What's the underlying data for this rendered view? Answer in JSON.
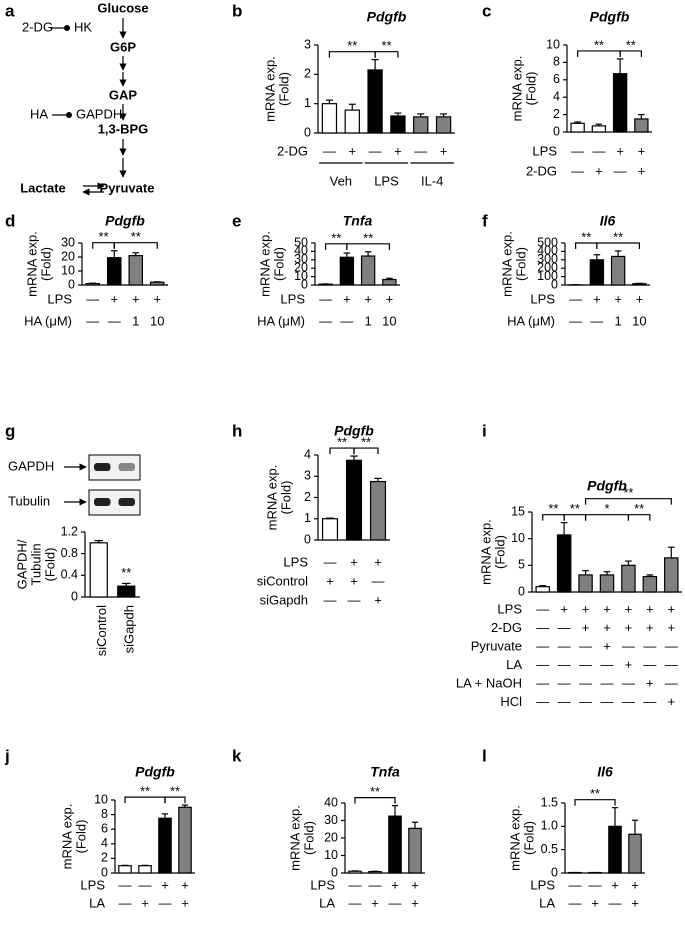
{
  "diagram": {
    "panel": "a",
    "nodes": [
      "Glucose",
      "G6P",
      "GAP",
      "1,3-BPG",
      "Lactate",
      "Pyruvate"
    ],
    "inhibitors": [
      {
        "drug": "2-DG",
        "target": "HK"
      },
      {
        "drug": "HA",
        "target": "GAPDH"
      }
    ]
  },
  "chart_data": [
    {
      "type": "bar",
      "panel": "b",
      "title": "Pdgfb",
      "ylabel": [
        "mRNA exp.",
        "(Fold)"
      ],
      "values": [
        1.0,
        0.78,
        2.15,
        0.58,
        0.55,
        0.55
      ],
      "errors": [
        0.12,
        0.2,
        0.35,
        0.1,
        0.1,
        0.1
      ],
      "colors": [
        "#ffffff",
        "#ffffff",
        "#000000",
        "#000000",
        "#808080",
        "#808080"
      ],
      "ylim": [
        0,
        3
      ],
      "yticks": [
        0,
        1,
        2,
        3
      ],
      "rows": [
        {
          "label": "2-DG",
          "marks": [
            "—",
            "+",
            "—",
            "+",
            "—",
            "+"
          ]
        }
      ],
      "groups": [
        "Veh",
        "LPS",
        "IL-4"
      ],
      "annotations": [
        {
          "text": "**",
          "between": [
            0,
            2
          ]
        },
        {
          "text": "**",
          "between": [
            2,
            3
          ]
        }
      ]
    },
    {
      "type": "bar",
      "panel": "c",
      "title": "Pdgfb",
      "ylabel": [
        "mRNA exp.",
        "(Fold)"
      ],
      "values": [
        1.0,
        0.7,
        6.7,
        1.5
      ],
      "errors": [
        0.15,
        0.2,
        1.7,
        0.5
      ],
      "colors": [
        "#ffffff",
        "#ffffff",
        "#000000",
        "#808080"
      ],
      "ylim": [
        0,
        10
      ],
      "yticks": [
        0,
        2,
        4,
        6,
        8,
        10
      ],
      "rows": [
        {
          "label": "LPS",
          "marks": [
            "—",
            "—",
            "+",
            "+"
          ]
        },
        {
          "label": "2-DG",
          "marks": [
            "—",
            "+",
            "—",
            "+"
          ]
        }
      ],
      "annotations": [
        {
          "text": "**",
          "between": [
            0,
            2
          ]
        },
        {
          "text": "**",
          "between": [
            2,
            3
          ]
        }
      ]
    },
    {
      "type": "bar",
      "panel": "d",
      "title": "Pdgfb",
      "ylabel": [
        "mRNA exp.",
        "(Fold)"
      ],
      "values": [
        1,
        19.5,
        21,
        2
      ],
      "errors": [
        0.3,
        5,
        2,
        0.3
      ],
      "colors": [
        "#ffffff",
        "#000000",
        "#808080",
        "#808080"
      ],
      "ylim": [
        0,
        30
      ],
      "yticks": [
        0,
        10,
        20,
        30
      ],
      "rows": [
        {
          "label": "LPS",
          "marks": [
            "—",
            "+",
            "+",
            "+"
          ]
        },
        {
          "label": "HA (μM)",
          "marks": [
            "—",
            "—",
            "1",
            "10"
          ]
        }
      ],
      "annotations": [
        {
          "text": "**",
          "between": [
            0,
            1
          ]
        },
        {
          "text": "**",
          "between": [
            1,
            3
          ]
        }
      ]
    },
    {
      "type": "bar",
      "panel": "e",
      "title": "Tnfa",
      "ylabel": [
        "mRNA exp.",
        "(Fold)"
      ],
      "values": [
        1,
        33,
        34.5,
        6.5
      ],
      "errors": [
        0.3,
        5,
        5,
        1.5
      ],
      "colors": [
        "#ffffff",
        "#000000",
        "#808080",
        "#808080"
      ],
      "ylim": [
        0,
        50
      ],
      "yticks": [
        0,
        10,
        20,
        30,
        40,
        50
      ],
      "rows": [
        {
          "label": "LPS",
          "marks": [
            "—",
            "+",
            "+",
            "+"
          ]
        },
        {
          "label": "HA (μM)",
          "marks": [
            "—",
            "—",
            "1",
            "10"
          ]
        }
      ],
      "annotations": [
        {
          "text": "**",
          "between": [
            0,
            1
          ]
        },
        {
          "text": "**",
          "between": [
            1,
            3
          ]
        }
      ]
    },
    {
      "type": "bar",
      "panel": "f",
      "title": "Il6",
      "ylabel": [
        "mRNA exp.",
        "(Fold)"
      ],
      "values": [
        2,
        300,
        340,
        15
      ],
      "errors": [
        1,
        60,
        65,
        5
      ],
      "colors": [
        "#ffffff",
        "#000000",
        "#808080",
        "#808080"
      ],
      "ylim": [
        0,
        500
      ],
      "yticks": [
        0,
        100,
        200,
        300,
        400,
        500
      ],
      "rows": [
        {
          "label": "LPS",
          "marks": [
            "—",
            "+",
            "+",
            "+"
          ]
        },
        {
          "label": "HA (μM)",
          "marks": [
            "—",
            "—",
            "1",
            "10"
          ]
        }
      ],
      "annotations": [
        {
          "text": "**",
          "between": [
            0,
            1
          ]
        },
        {
          "text": "**",
          "between": [
            1,
            3
          ]
        }
      ]
    },
    {
      "type": "bar",
      "panel": "g",
      "blots": [
        "GAPDH",
        "Tubulin"
      ],
      "ylabel": [
        "GAPDH/",
        "Tubulin",
        "(Fold)"
      ],
      "categories": [
        "siControl",
        "siGapdh"
      ],
      "values": [
        1.0,
        0.2
      ],
      "errors": [
        0.04,
        0.05
      ],
      "colors": [
        "#ffffff",
        "#000000"
      ],
      "ylim": [
        0,
        1.2
      ],
      "yticks": [
        0,
        0.4,
        0.8,
        1.2
      ],
      "annotations": [
        {
          "text": "**",
          "between": [
            1
          ]
        }
      ]
    },
    {
      "type": "bar",
      "panel": "h",
      "title": "Pdgfb",
      "ylabel": [
        "mRNA exp.",
        "(Fold)"
      ],
      "values": [
        1.0,
        3.75,
        2.75
      ],
      "errors": [
        0.03,
        0.2,
        0.15
      ],
      "colors": [
        "#ffffff",
        "#000000",
        "#808080"
      ],
      "ylim": [
        0,
        4
      ],
      "yticks": [
        0,
        1,
        2,
        3,
        4
      ],
      "rows": [
        {
          "label": "LPS",
          "marks": [
            "—",
            "+",
            "+"
          ]
        },
        {
          "label": "siControl",
          "marks": [
            "+",
            "+",
            "—"
          ]
        },
        {
          "label": "siGapdh",
          "marks": [
            "—",
            "—",
            "+"
          ]
        }
      ],
      "annotations": [
        {
          "text": "**",
          "between": [
            0,
            1
          ]
        },
        {
          "text": "**",
          "between": [
            1,
            2
          ]
        }
      ]
    },
    {
      "type": "bar",
      "panel": "i",
      "title": "Pdgfb",
      "ylabel": [
        "mRNA exp.",
        "(Fold)"
      ],
      "values": [
        1,
        10.7,
        3.2,
        3.2,
        5,
        2.9,
        6.4
      ],
      "errors": [
        0.2,
        2.3,
        0.8,
        0.6,
        0.8,
        0.3,
        2
      ],
      "colors": [
        "#ffffff",
        "#000000",
        "#808080",
        "#808080",
        "#808080",
        "#808080",
        "#808080"
      ],
      "ylim": [
        0,
        15
      ],
      "yticks": [
        0,
        5,
        10,
        15
      ],
      "rows": [
        {
          "label": "LPS",
          "marks": [
            "—",
            "+",
            "+",
            "+",
            "+",
            "+",
            "+"
          ]
        },
        {
          "label": "2-DG",
          "marks": [
            "—",
            "—",
            "+",
            "+",
            "+",
            "+",
            "+"
          ]
        },
        {
          "label": "Pyruvate",
          "marks": [
            "—",
            "—",
            "—",
            "+",
            "—",
            "—",
            "—"
          ]
        },
        {
          "label": "LA",
          "marks": [
            "—",
            "—",
            "—",
            "—",
            "+",
            "—",
            "—"
          ]
        },
        {
          "label": "LA + NaOH",
          "marks": [
            "—",
            "—",
            "—",
            "—",
            "—",
            "+",
            "—"
          ]
        },
        {
          "label": "HCl",
          "marks": [
            "—",
            "—",
            "—",
            "—",
            "—",
            "—",
            "+"
          ]
        }
      ],
      "annotations": [
        {
          "text": "**",
          "between": [
            0,
            1
          ]
        },
        {
          "text": "**",
          "between": [
            1,
            2
          ]
        },
        {
          "text": "*",
          "between": [
            2,
            4
          ]
        },
        {
          "text": "**",
          "between": [
            4,
            5
          ]
        },
        {
          "text": "**",
          "between": [
            2,
            6
          ]
        }
      ]
    },
    {
      "type": "bar",
      "panel": "j",
      "title": "Pdgfb",
      "ylabel": [
        "mRNA exp.",
        "(Fold)"
      ],
      "values": [
        1,
        1,
        7.5,
        9
      ],
      "errors": [
        0.05,
        0.05,
        0.6,
        0.3
      ],
      "colors": [
        "#ffffff",
        "#ffffff",
        "#000000",
        "#808080"
      ],
      "ylim": [
        0,
        10
      ],
      "yticks": [
        0,
        2,
        4,
        6,
        8,
        10
      ],
      "rows": [
        {
          "label": "LPS",
          "marks": [
            "—",
            "—",
            "+",
            "+"
          ]
        },
        {
          "label": "LA",
          "marks": [
            "—",
            "+",
            "—",
            "+"
          ]
        }
      ],
      "annotations": [
        {
          "text": "**",
          "between": [
            0,
            2
          ]
        },
        {
          "text": "**",
          "between": [
            2,
            3
          ]
        }
      ]
    },
    {
      "type": "bar",
      "panel": "k",
      "title": "Tnfa",
      "ylabel": [
        "mRNA exp.",
        "(Fold)"
      ],
      "values": [
        1,
        0.8,
        32.5,
        25.5
      ],
      "errors": [
        0.2,
        0.2,
        6,
        3.5
      ],
      "colors": [
        "#ffffff",
        "#ffffff",
        "#000000",
        "#808080"
      ],
      "ylim": [
        0,
        40
      ],
      "yticks": [
        0,
        10,
        20,
        30,
        40
      ],
      "rows": [
        {
          "label": "LPS",
          "marks": [
            "—",
            "—",
            "+",
            "+"
          ]
        },
        {
          "label": "LA",
          "marks": [
            "—",
            "+",
            "—",
            "+"
          ]
        }
      ],
      "annotations": [
        {
          "text": "**",
          "between": [
            0,
            2
          ]
        }
      ]
    },
    {
      "type": "bar",
      "panel": "l",
      "title": "Il6",
      "ylabel": [
        "mRNA exp.",
        "(Fold)"
      ],
      "values": [
        0.01,
        0.01,
        1.0,
        0.83
      ],
      "errors": [
        0,
        0,
        0.4,
        0.3
      ],
      "colors": [
        "#ffffff",
        "#ffffff",
        "#000000",
        "#808080"
      ],
      "ylim": [
        0,
        1.5
      ],
      "yticks": [
        0,
        0.5,
        {
          "value": 1,
          "label": "1.0"
        },
        1.5
      ],
      "rows": [
        {
          "label": "LPS",
          "marks": [
            "—",
            "—",
            "+",
            "+"
          ]
        },
        {
          "label": "LA",
          "marks": [
            "—",
            "+",
            "—",
            "+"
          ]
        }
      ],
      "annotations": [
        {
          "text": "**",
          "between": [
            0,
            2
          ]
        }
      ]
    }
  ]
}
